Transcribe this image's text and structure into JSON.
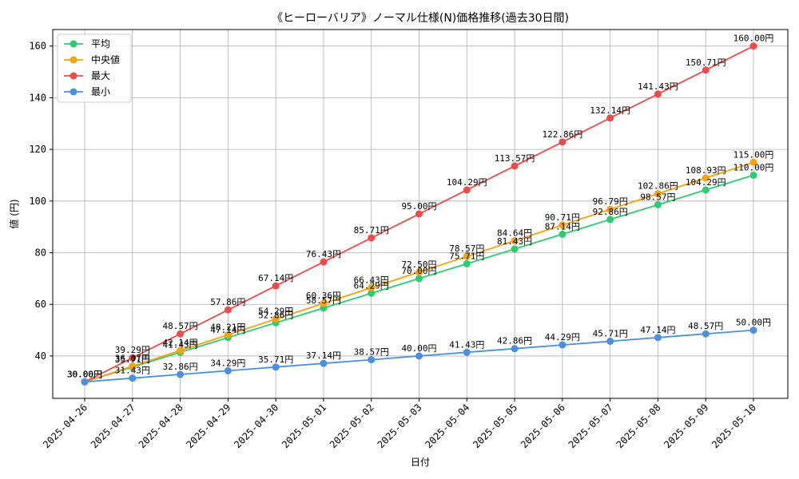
{
  "chart_data": {
    "type": "line",
    "title": "《ヒーローバリア》ノーマル仕様(N)価格推移(過去30日間)",
    "xlabel": "日付",
    "ylabel": "値 (円)",
    "unit_suffix": "円",
    "categories": [
      "2025-04-26",
      "2025-04-27",
      "2025-04-28",
      "2025-04-29",
      "2025-04-30",
      "2025-05-01",
      "2025-05-02",
      "2025-05-03",
      "2025-05-04",
      "2025-05-05",
      "2025-05-06",
      "2025-05-07",
      "2025-05-08",
      "2025-05-09",
      "2025-05-10"
    ],
    "ylim": [
      23.6,
      166.4
    ],
    "yticks": [
      40,
      60,
      80,
      100,
      120,
      140,
      160
    ],
    "grid": true,
    "legend_position": "top-left",
    "series": [
      {
        "name": "平均",
        "color": "#2ecc71",
        "values": [
          30.0,
          35.71,
          41.43,
          47.14,
          52.86,
          58.57,
          64.29,
          70.0,
          75.71,
          81.43,
          87.14,
          92.86,
          98.57,
          104.29,
          110.0
        ]
      },
      {
        "name": "中央値",
        "color": "#f5a30f",
        "values": [
          30.0,
          36.07,
          42.14,
          48.21,
          54.29,
          60.36,
          66.43,
          72.5,
          78.57,
          84.64,
          90.71,
          96.79,
          102.86,
          108.93,
          115.0
        ]
      },
      {
        "name": "最大",
        "color": "#f04a4a",
        "values": [
          30.0,
          39.29,
          48.57,
          57.86,
          67.14,
          76.43,
          85.71,
          95.0,
          104.29,
          113.57,
          122.86,
          132.14,
          141.43,
          150.71,
          160.0
        ]
      },
      {
        "name": "最小",
        "color": "#4a90e2",
        "values": [
          30.0,
          31.43,
          32.86,
          34.29,
          35.71,
          37.14,
          38.57,
          40.0,
          41.43,
          42.86,
          44.29,
          45.71,
          47.14,
          48.57,
          50.0
        ]
      }
    ]
  }
}
